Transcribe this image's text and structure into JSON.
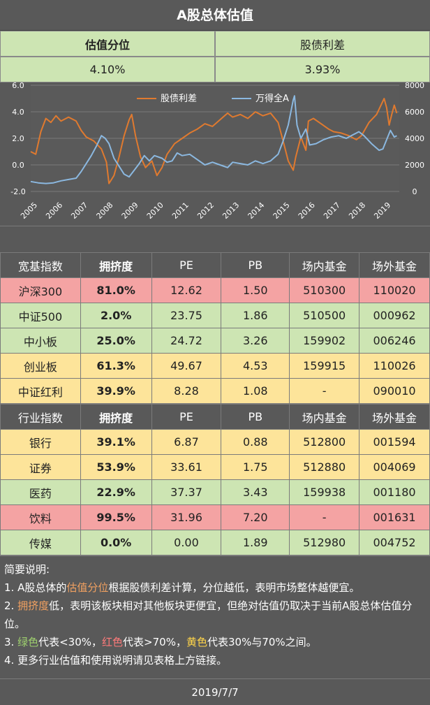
{
  "title": "A股总体估值",
  "summary": {
    "header1": "估值分位",
    "header2": "股债利差",
    "value1": "4.10%",
    "value2": "3.93%"
  },
  "chart_data": {
    "type": "line",
    "title": "",
    "legend": [
      "股债利差",
      "万得全A"
    ],
    "legend_position": "top-center",
    "colors": {
      "股债利差": "#e07a2f",
      "万得全A": "#8bb8e0"
    },
    "years": [
      "2005",
      "2006",
      "2007",
      "2008",
      "2009",
      "2010",
      "2011",
      "2012",
      "2013",
      "2014",
      "2015",
      "2016",
      "2017",
      "2018",
      "2019"
    ],
    "left_axis": {
      "ticks": [
        "6.0",
        "4.0",
        "2.0",
        "0.0",
        "-2.0"
      ],
      "range": [
        -2,
        6
      ]
    },
    "right_axis": {
      "ticks": [
        "8000",
        "6000",
        "4000",
        "2000",
        "0"
      ],
      "range": [
        0,
        8000
      ]
    },
    "series": [
      {
        "name": "股债利差",
        "axis": "left",
        "points": [
          [
            2005.0,
            1.0
          ],
          [
            2005.2,
            0.8
          ],
          [
            2005.4,
            2.5
          ],
          [
            2005.6,
            3.5
          ],
          [
            2005.8,
            3.2
          ],
          [
            2006.0,
            3.7
          ],
          [
            2006.2,
            3.3
          ],
          [
            2006.5,
            3.6
          ],
          [
            2006.8,
            3.3
          ],
          [
            2007.0,
            2.6
          ],
          [
            2007.2,
            2.1
          ],
          [
            2007.5,
            1.8
          ],
          [
            2007.8,
            1.2
          ],
          [
            2008.0,
            0.2
          ],
          [
            2008.1,
            -1.4
          ],
          [
            2008.3,
            -0.8
          ],
          [
            2008.5,
            0.6
          ],
          [
            2008.7,
            2.2
          ],
          [
            2008.9,
            3.4
          ],
          [
            2009.0,
            3.8
          ],
          [
            2009.15,
            2.2
          ],
          [
            2009.35,
            0.6
          ],
          [
            2009.55,
            -0.2
          ],
          [
            2009.8,
            0.3
          ],
          [
            2010.0,
            -0.8
          ],
          [
            2010.2,
            -0.2
          ],
          [
            2010.4,
            0.8
          ],
          [
            2010.7,
            1.6
          ],
          [
            2011.0,
            2.0
          ],
          [
            2011.3,
            2.4
          ],
          [
            2011.6,
            2.7
          ],
          [
            2011.9,
            3.1
          ],
          [
            2012.2,
            2.9
          ],
          [
            2012.5,
            3.4
          ],
          [
            2012.8,
            3.9
          ],
          [
            2013.0,
            3.6
          ],
          [
            2013.3,
            3.8
          ],
          [
            2013.6,
            3.5
          ],
          [
            2013.9,
            4.0
          ],
          [
            2014.2,
            3.7
          ],
          [
            2014.5,
            3.9
          ],
          [
            2014.8,
            3.2
          ],
          [
            2015.0,
            1.8
          ],
          [
            2015.2,
            0.3
          ],
          [
            2015.4,
            -0.4
          ],
          [
            2015.5,
            0.6
          ],
          [
            2015.7,
            2.1
          ],
          [
            2015.9,
            1.1
          ],
          [
            2016.0,
            3.3
          ],
          [
            2016.2,
            3.5
          ],
          [
            2016.5,
            3.1
          ],
          [
            2016.8,
            2.7
          ],
          [
            2017.0,
            2.5
          ],
          [
            2017.3,
            2.4
          ],
          [
            2017.6,
            2.2
          ],
          [
            2017.9,
            1.9
          ],
          [
            2018.1,
            2.2
          ],
          [
            2018.4,
            3.2
          ],
          [
            2018.7,
            3.8
          ],
          [
            2018.9,
            4.6
          ],
          [
            2019.0,
            5.0
          ],
          [
            2019.1,
            4.3
          ],
          [
            2019.2,
            3.0
          ],
          [
            2019.3,
            3.8
          ],
          [
            2019.4,
            4.5
          ],
          [
            2019.5,
            3.9
          ]
        ]
      },
      {
        "name": "万得全A",
        "axis": "right",
        "points": [
          [
            2005.0,
            750
          ],
          [
            2005.3,
            650
          ],
          [
            2005.6,
            600
          ],
          [
            2005.9,
            650
          ],
          [
            2006.2,
            800
          ],
          [
            2006.5,
            900
          ],
          [
            2006.8,
            1000
          ],
          [
            2007.0,
            1500
          ],
          [
            2007.2,
            2100
          ],
          [
            2007.4,
            2700
          ],
          [
            2007.6,
            3400
          ],
          [
            2007.8,
            4200
          ],
          [
            2007.95,
            4000
          ],
          [
            2008.1,
            3600
          ],
          [
            2008.3,
            2500
          ],
          [
            2008.5,
            1900
          ],
          [
            2008.7,
            1300
          ],
          [
            2008.9,
            1100
          ],
          [
            2009.1,
            1600
          ],
          [
            2009.3,
            2100
          ],
          [
            2009.5,
            2700
          ],
          [
            2009.7,
            2300
          ],
          [
            2009.9,
            2700
          ],
          [
            2010.2,
            2500
          ],
          [
            2010.4,
            2200
          ],
          [
            2010.6,
            2300
          ],
          [
            2010.8,
            2900
          ],
          [
            2011.0,
            2700
          ],
          [
            2011.3,
            2800
          ],
          [
            2011.6,
            2400
          ],
          [
            2011.9,
            2000
          ],
          [
            2012.2,
            2200
          ],
          [
            2012.5,
            2000
          ],
          [
            2012.8,
            1800
          ],
          [
            2013.0,
            2200
          ],
          [
            2013.3,
            2100
          ],
          [
            2013.6,
            2000
          ],
          [
            2013.9,
            2300
          ],
          [
            2014.2,
            2100
          ],
          [
            2014.5,
            2300
          ],
          [
            2014.8,
            2800
          ],
          [
            2015.0,
            3800
          ],
          [
            2015.2,
            5000
          ],
          [
            2015.4,
            6900
          ],
          [
            2015.45,
            7200
          ],
          [
            2015.55,
            5000
          ],
          [
            2015.7,
            4000
          ],
          [
            2015.9,
            4700
          ],
          [
            2016.05,
            3500
          ],
          [
            2016.3,
            3600
          ],
          [
            2016.6,
            3900
          ],
          [
            2016.9,
            4100
          ],
          [
            2017.2,
            4200
          ],
          [
            2017.5,
            4000
          ],
          [
            2017.8,
            4300
          ],
          [
            2018.0,
            4500
          ],
          [
            2018.2,
            4200
          ],
          [
            2018.5,
            3600
          ],
          [
            2018.8,
            3100
          ],
          [
            2018.95,
            3200
          ],
          [
            2019.1,
            3900
          ],
          [
            2019.25,
            4600
          ],
          [
            2019.4,
            4100
          ],
          [
            2019.5,
            4200
          ]
        ]
      }
    ],
    "grid": true
  },
  "tables": {
    "broad": {
      "headers": [
        "宽基指数",
        "拥挤度",
        "PE",
        "PB",
        "场内基金",
        "场外基金"
      ],
      "rows": [
        {
          "name": "沪深300",
          "crowd": "81.0%",
          "pe": "12.62",
          "pb": "1.50",
          "etf": "510300",
          "otc": "110020",
          "color": "red"
        },
        {
          "name": "中证500",
          "crowd": "2.0%",
          "pe": "23.75",
          "pb": "1.86",
          "etf": "510500",
          "otc": "000962",
          "color": "green"
        },
        {
          "name": "中小板",
          "crowd": "25.0%",
          "pe": "24.72",
          "pb": "3.26",
          "etf": "159902",
          "otc": "006246",
          "color": "green"
        },
        {
          "name": "创业板",
          "crowd": "61.3%",
          "pe": "49.67",
          "pb": "4.53",
          "etf": "159915",
          "otc": "110026",
          "color": "yellow"
        },
        {
          "name": "中证红利",
          "crowd": "39.9%",
          "pe": "8.28",
          "pb": "1.08",
          "etf": "-",
          "otc": "090010",
          "color": "yellow"
        }
      ]
    },
    "industry": {
      "headers": [
        "行业指数",
        "拥挤度",
        "PE",
        "PB",
        "场内基金",
        "场外基金"
      ],
      "rows": [
        {
          "name": "银行",
          "crowd": "39.1%",
          "pe": "6.87",
          "pb": "0.88",
          "etf": "512800",
          "otc": "001594",
          "color": "yellow"
        },
        {
          "name": "证券",
          "crowd": "53.9%",
          "pe": "33.61",
          "pb": "1.75",
          "etf": "512880",
          "otc": "004069",
          "color": "yellow"
        },
        {
          "name": "医药",
          "crowd": "22.9%",
          "pe": "37.37",
          "pb": "3.43",
          "etf": "159938",
          "otc": "001180",
          "color": "green"
        },
        {
          "name": "饮料",
          "crowd": "99.5%",
          "pe": "31.96",
          "pb": "7.20",
          "etf": "-",
          "otc": "001631",
          "color": "red"
        },
        {
          "name": "传媒",
          "crowd": "0.0%",
          "pe": "0.00",
          "pb": "1.89",
          "etf": "512980",
          "otc": "004752",
          "color": "green"
        }
      ]
    }
  },
  "notes": {
    "heading": "简要说明:",
    "n1_a": "1. A股总体的",
    "n1_b": "估值分位",
    "n1_c": "根据股债利差计算，分位越低，表明市场整体越便宜。",
    "n2_a": "2. ",
    "n2_b": "拥挤度",
    "n2_c": "低，表明该板块相对其他板块更便宜，但绝对估值仍取决于当前A股总体估值分位。",
    "n3_a": "3. ",
    "n3_b": "绿色",
    "n3_c": "代表<30%，",
    "n3_d": "红色",
    "n3_e": "代表>70%，",
    "n3_f": "黄色",
    "n3_g": "代表30%与70%之间。",
    "n4": "4. 更多行业估值和使用说明请见表格上方链接。"
  },
  "footer": {
    "date": "2019/7/7"
  }
}
